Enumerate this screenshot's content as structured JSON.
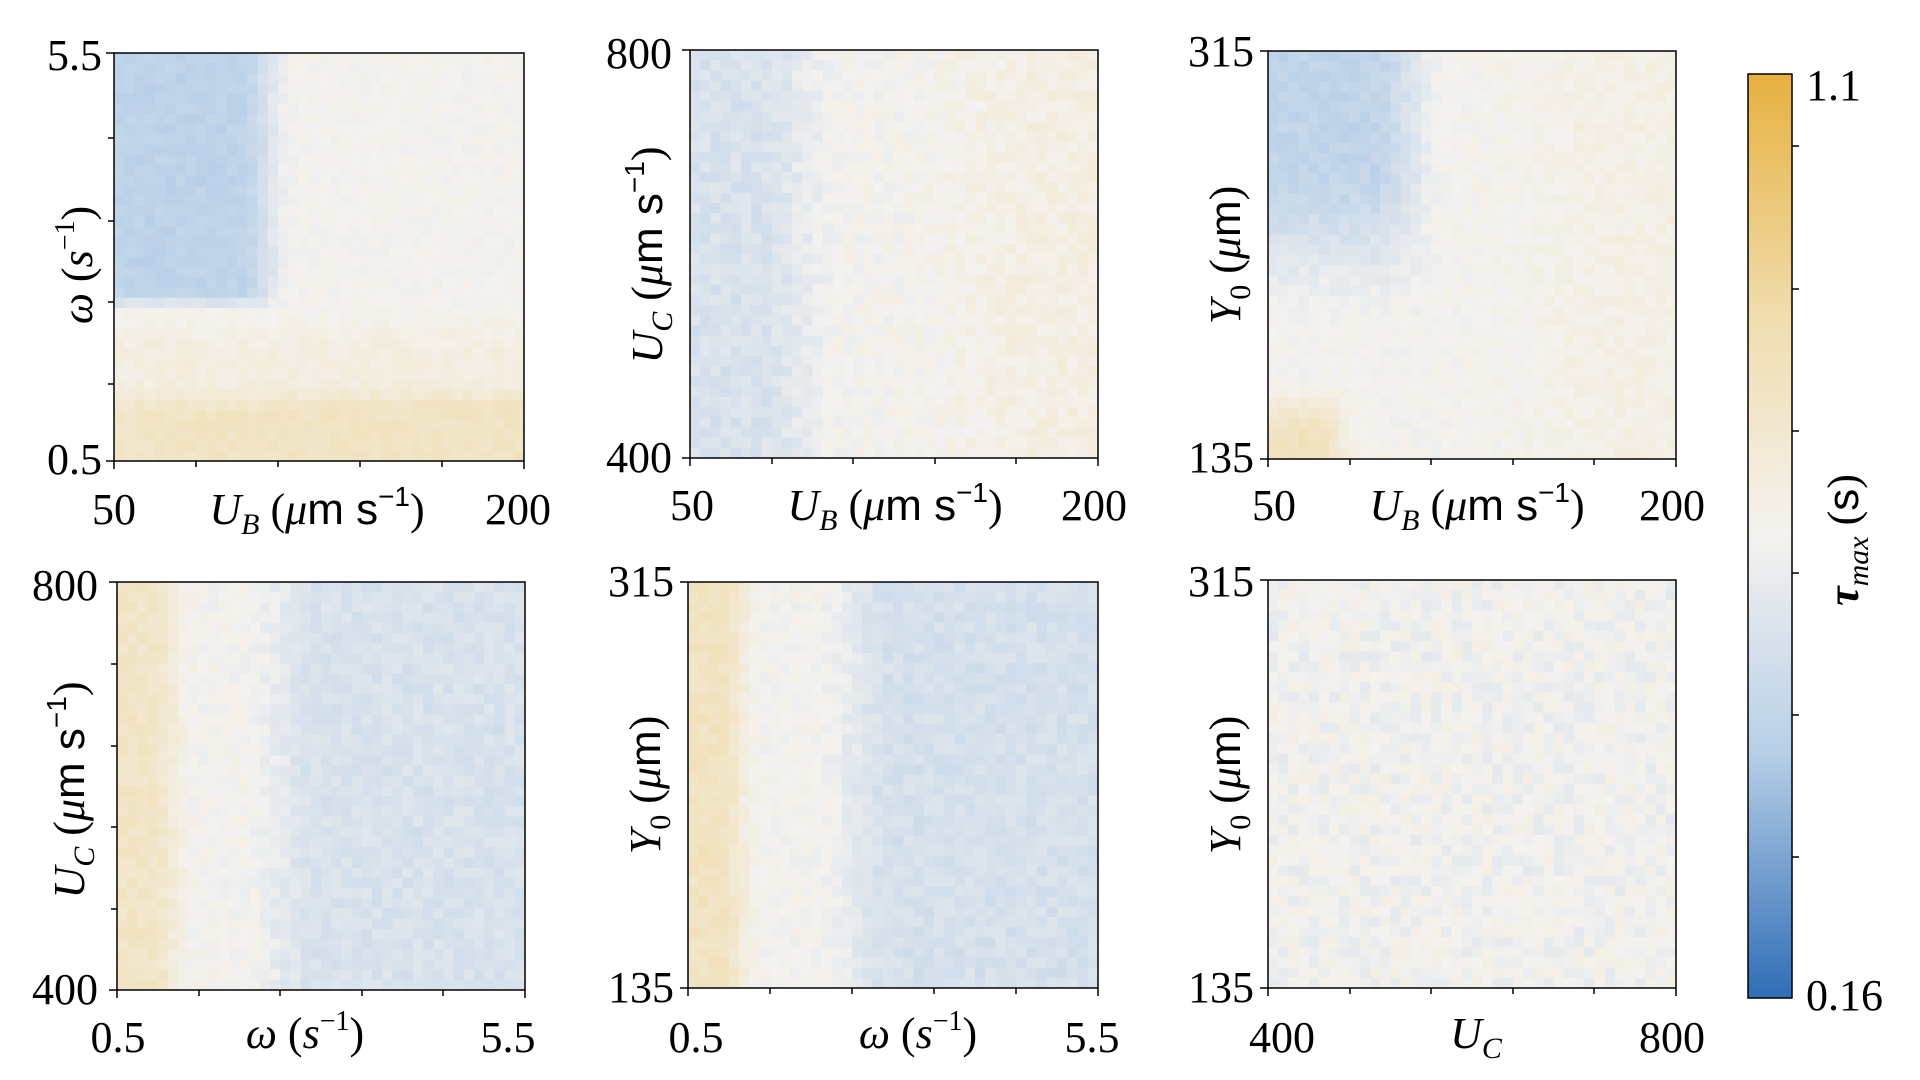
{
  "chart_data": {
    "type": "heatmap",
    "colorbar": {
      "label": "τmax (s)",
      "min_label": "0.16",
      "max_label": "1.1",
      "min": 0.16,
      "max": 1.1,
      "colors": [
        "#2f6db5",
        "#b9d0e8",
        "#f4f2ef",
        "#f0deb0",
        "#e7b140"
      ]
    },
    "panels": [
      {
        "id": "ub-omega",
        "xlabel": "U_B (μm s⁻¹)",
        "ylabel": "ω (s⁻¹)",
        "x_ticks": [
          "50",
          "200"
        ],
        "y_ticks": [
          "5.5",
          "0.5"
        ],
        "xlim": [
          50,
          200
        ],
        "ylim": [
          0.5,
          5.5
        ],
        "pattern": "blue upper-left region (low U_B, high ω), yellow band at low ω, neutral elsewhere"
      },
      {
        "id": "ub-uc",
        "xlabel": "U_B (μm s⁻¹)",
        "ylabel": "U_C (μm s⁻¹)",
        "x_ticks": [
          "50",
          "200"
        ],
        "y_ticks": [
          "800",
          "400"
        ],
        "xlim": [
          50,
          200
        ],
        "ylim": [
          400,
          800
        ],
        "pattern": "light blue at low U_B, faint yellow at high U_B"
      },
      {
        "id": "ub-y0",
        "xlabel": "U_B (μm s⁻¹)",
        "ylabel": "Y0 (μm)",
        "x_ticks": [
          "50",
          "200"
        ],
        "y_ticks": [
          "315",
          "135"
        ],
        "xlim": [
          50,
          200
        ],
        "ylim": [
          135,
          315
        ],
        "pattern": "blue upper-left, yellow lower-left corner, neutral/faint yellow right"
      },
      {
        "id": "omega-uc",
        "xlabel": "ω (s⁻¹)",
        "ylabel": "U_C (μm s⁻¹)",
        "x_ticks": [
          "0.5",
          "5.5"
        ],
        "y_ticks": [
          "800",
          "400"
        ],
        "xlim": [
          0.5,
          5.5
        ],
        "ylim": [
          400,
          800
        ],
        "pattern": "yellow stripe at low ω, blue at higher ω"
      },
      {
        "id": "omega-y0",
        "xlabel": "ω (s⁻¹)",
        "ylabel": "Y0 (μm)",
        "x_ticks": [
          "0.5",
          "5.5"
        ],
        "y_ticks": [
          "315",
          "135"
        ],
        "xlim": [
          0.5,
          5.5
        ],
        "ylim": [
          135,
          315
        ],
        "pattern": "yellow stripe at low ω, blue at higher ω"
      },
      {
        "id": "uc-y0",
        "xlabel": "U_C",
        "ylabel": "Y0 (μm)",
        "x_ticks": [
          "400",
          "800"
        ],
        "y_ticks": [
          "315",
          "135"
        ],
        "xlim": [
          400,
          800
        ],
        "ylim": [
          135,
          315
        ],
        "pattern": "near-uniform noisy neutral with faint blue and yellow speckle"
      }
    ]
  }
}
